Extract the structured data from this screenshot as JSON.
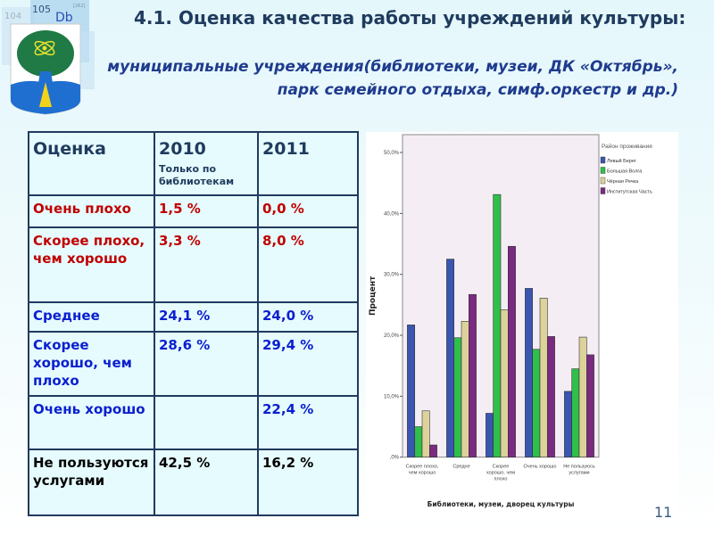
{
  "logo": {
    "tiles": [
      "104",
      "105",
      "Db",
      "[262]"
    ]
  },
  "title": "4.1. Оценка качества работы учреждений культуры:",
  "subtitle": "муниципальные учреждения(библиотеки, музеи, ДК «Октябрь», парк семейного отдыха, симф.оркестр и др.)",
  "table": {
    "headers": [
      "Оценка",
      "2010",
      "2011"
    ],
    "header_note": "Только по библиотекам",
    "rows": [
      [
        "Очень плохо",
        "1,5 %",
        "0,0 %"
      ],
      [
        "Скорее плохо, чем хорошо",
        "3,3 %",
        "8,0 %"
      ],
      [
        "Среднее",
        "24,1 %",
        "24,0 %"
      ],
      [
        "Скорее хорошо, чем плохо",
        "28,6 %",
        "29,4 %"
      ],
      [
        "Очень хорошо",
        "",
        "22,4 %"
      ],
      [
        "Не пользуются услугами",
        "42,5 %",
        "16,2 %"
      ]
    ]
  },
  "chart_data": {
    "type": "bar",
    "title": "",
    "xlabel": "Библиотеки, музеи, дворец культуры",
    "ylabel": "Процент",
    "ylim": [
      0,
      50
    ],
    "yticks": [
      ",0%",
      "10,0%",
      "20,0%",
      "30,0%",
      "40,0%",
      "50,0%"
    ],
    "categories": [
      "Скорее плохо, чем хорошо",
      "Средне",
      "Скорее хорошо, чем плохо",
      "Очень хорошо",
      "Не пользуюсь услугами"
    ],
    "legend_title": "Район проживания",
    "legend_position": "right",
    "series": [
      {
        "name": "Левый Берег",
        "color": "#3b56b0",
        "values": [
          21.7,
          32.5,
          7.2,
          27.7,
          10.8
        ]
      },
      {
        "name": "Большая Волга",
        "color": "#2fbf4a",
        "values": [
          5.0,
          19.6,
          43.1,
          17.7,
          14.5
        ]
      },
      {
        "name": "Чёрная Речка",
        "color": "#dcd29a",
        "values": [
          7.6,
          22.3,
          24.2,
          26.1,
          19.7
        ]
      },
      {
        "name": "Институтская Часть",
        "color": "#7a2a80",
        "values": [
          2.0,
          26.7,
          34.6,
          19.8,
          16.8
        ]
      }
    ]
  },
  "page_number": "11"
}
